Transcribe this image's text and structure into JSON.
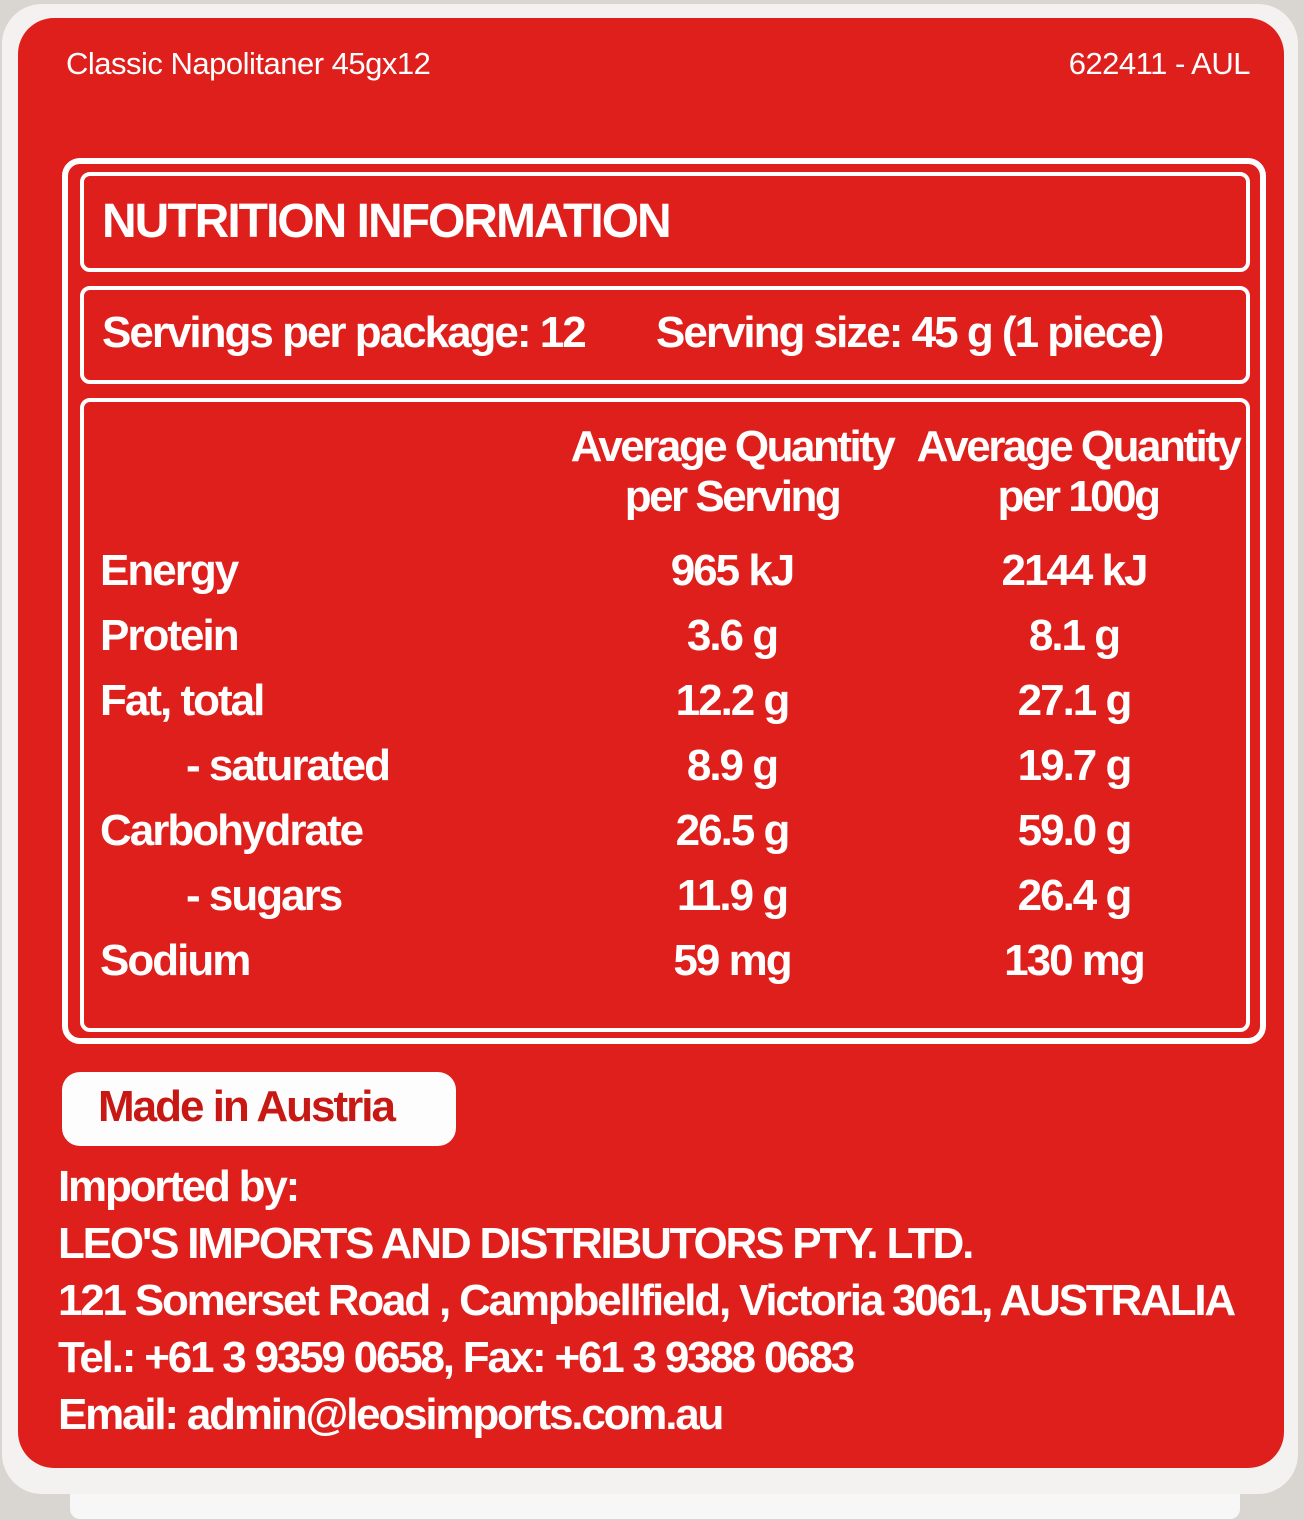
{
  "product_name": "Classic Napolitaner 45gx12",
  "product_code": "622411 - AUL",
  "nutrition": {
    "title": "NUTRITION INFORMATION",
    "servings_per_package": "Servings per package: 12",
    "serving_size": "Serving size: 45 g (1 piece)",
    "column_headers": [
      {
        "line1": "Average Quantity",
        "line2": "per Serving"
      },
      {
        "line1": "Average Quantity",
        "line2": "per 100g"
      }
    ],
    "rows": [
      {
        "label": "Energy",
        "per_serving": "965 kJ",
        "per_100g": "2144 kJ"
      },
      {
        "label": "Protein",
        "per_serving": "3.6 g",
        "per_100g": "8.1 g"
      },
      {
        "label": "Fat, total",
        "per_serving": "12.2 g",
        "per_100g": "27.1 g"
      },
      {
        "label": "- saturated",
        "per_serving": "8.9 g",
        "per_100g": "19.7 g"
      },
      {
        "label": "Carbohydrate",
        "per_serving": "26.5 g",
        "per_100g": "59.0 g"
      },
      {
        "label": "- sugars",
        "per_serving": "11.9 g",
        "per_100g": "26.4 g"
      },
      {
        "label": "Sodium",
        "per_serving": "59 mg",
        "per_100g": "130 mg"
      }
    ]
  },
  "origin_badge": "Made in Austria",
  "importer": {
    "heading": "Imported by:",
    "company": "LEO'S IMPORTS AND DISTRIBUTORS PTY. LTD.",
    "address": "121 Somerset Road , Campbellfield, Victoria 3061, AUSTRALIA",
    "phone_fax": "Tel.: +61 3 9359 0658, Fax: +61 3 9388 0683",
    "email": "Email: admin@leosimports.com.au"
  },
  "colors": {
    "label_red": "#df1f1c",
    "text_white": "#ffffff",
    "badge_text_red": "#c81814"
  }
}
